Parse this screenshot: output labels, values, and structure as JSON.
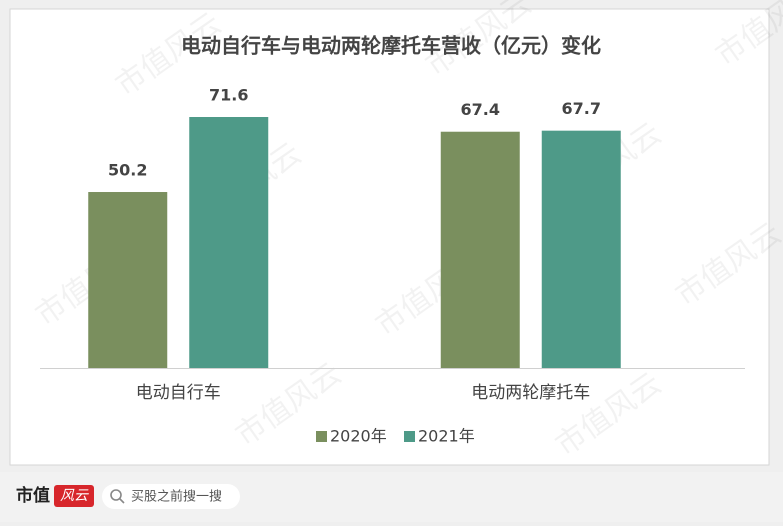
{
  "chart_data": {
    "type": "bar",
    "title": "电动自行车与电动两轮摩托车营收（亿元）变化",
    "categories": [
      "电动自行车",
      "电动两轮摩托车"
    ],
    "series": [
      {
        "name": "2020年",
        "color": "#7a8f5e",
        "values": [
          50.2,
          67.4
        ]
      },
      {
        "name": "2021年",
        "color": "#4e9a88",
        "values": [
          71.6,
          67.7
        ]
      }
    ],
    "legend": "bottom"
  },
  "watermark": "市值风云",
  "footer": {
    "logo": "市值",
    "badge": "风云",
    "search": "买股之前搜一搜"
  }
}
